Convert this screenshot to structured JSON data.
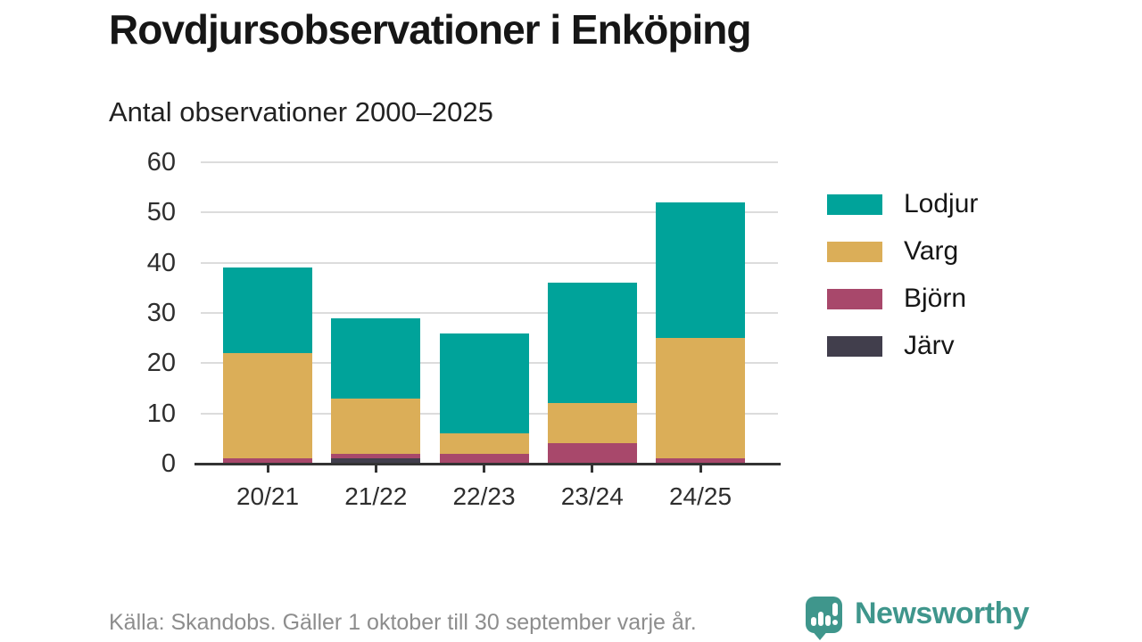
{
  "header": {
    "title": "Rovdjursobservationer i Enköping",
    "subtitle": "Antal observationer 2000–2025"
  },
  "footer": {
    "source_note": "Källa: Skandobs. Gäller 1 oktober till 30 september varje år."
  },
  "branding": {
    "name": "Newsworthy",
    "icon": "newsworthy-bubble-barchart-icon",
    "color": "#3f968c"
  },
  "colors": {
    "background": "#ffffff",
    "title_text": "#161616",
    "axis_text": "#2e2e2e",
    "axis_line": "#333333",
    "gridline": "#dcdcdc",
    "source_text": "#8d8d8d"
  },
  "chart_data": {
    "type": "bar",
    "stacked": true,
    "title": "Rovdjursobservationer i Enköping",
    "subtitle": "Antal observationer 2000–2025",
    "xlabel": "",
    "ylabel": "",
    "ylim": [
      0,
      60
    ],
    "yticks": [
      0,
      10,
      20,
      30,
      40,
      50,
      60
    ],
    "grid": "horizontal",
    "legend_position": "right",
    "categories": [
      "20/21",
      "21/22",
      "22/23",
      "23/24",
      "24/25"
    ],
    "series": [
      {
        "name": "Lodjur",
        "color": "#00a39a",
        "values": [
          17,
          16,
          20,
          24,
          27
        ]
      },
      {
        "name": "Varg",
        "color": "#dbae58",
        "values": [
          21,
          11,
          4,
          8,
          24
        ]
      },
      {
        "name": "Björn",
        "color": "#a8486b",
        "values": [
          1,
          1,
          2,
          4,
          1
        ]
      },
      {
        "name": "Järv",
        "color": "#413e4c",
        "values": [
          0,
          1,
          0,
          0,
          0
        ]
      }
    ],
    "stack_order_bottom_to_top": [
      "Järv",
      "Björn",
      "Varg",
      "Lodjur"
    ]
  }
}
